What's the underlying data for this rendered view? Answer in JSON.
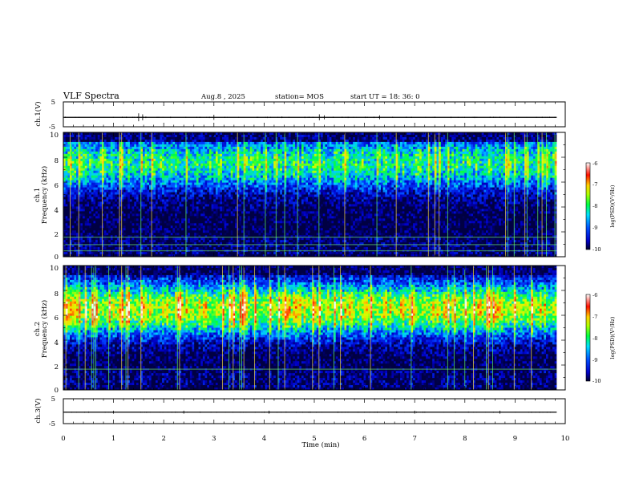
{
  "header": {
    "title": "VLF Spectra",
    "date": "Aug.8  , 2025",
    "station": "station= MOS",
    "start": "start  UT  =   18: 36: 0"
  },
  "colors": {
    "spectrogram_stops": [
      "#00002a",
      "#0000c8",
      "#0040ff",
      "#00d0ff",
      "#00ff40",
      "#d0ff00",
      "#ffd000",
      "#ff2000",
      "#ffffff"
    ],
    "axis": "#000000",
    "background": "#ffffff"
  },
  "chart_data": [
    {
      "type": "line",
      "name": "ch1 waveform",
      "ylabel": "ch.1(V)",
      "ylim": [
        -5,
        5
      ],
      "yticks": [
        "5",
        "-5"
      ],
      "xlim": [
        0,
        10
      ],
      "baseline": -1.2,
      "bursts": [
        [
          1.5,
          0.4
        ],
        [
          1.58,
          0.3
        ],
        [
          3.0,
          0.25
        ],
        [
          5.1,
          0.3
        ],
        [
          5.2,
          0.2
        ],
        [
          6.3,
          0.2
        ]
      ]
    },
    {
      "type": "heatmap",
      "name": "ch1 spectrogram",
      "xlabel": "Time  (min)",
      "ylabel": "Frequency  (kHz)",
      "channel_label": "ch.1",
      "xlim": [
        0,
        9.83
      ],
      "ylim": [
        0,
        10
      ],
      "yticks": [
        "0",
        "2",
        "4",
        "6",
        "8",
        "10"
      ],
      "band_center_khz": 7.5,
      "band_intensity": 0.62,
      "horizontal_lines_khz": [
        0.5,
        1.0,
        1.6
      ],
      "colorbar": {
        "label": "log(PSD)(V²/Hz)",
        "ticks": [
          "-6",
          "-7",
          "-8",
          "-9",
          "-10"
        ],
        "range": [
          -10,
          -6
        ]
      }
    },
    {
      "type": "heatmap",
      "name": "ch2 spectrogram",
      "xlabel": "Time  (min)",
      "ylabel": "Frequency  (kHz)",
      "channel_label": "ch.2",
      "xlim": [
        0,
        9.83
      ],
      "ylim": [
        0,
        10
      ],
      "yticks": [
        "0",
        "2",
        "4",
        "6",
        "8",
        "10"
      ],
      "band_center_khz": 6.5,
      "band_intensity": 0.85,
      "horizontal_lines_khz": [
        1.7
      ],
      "colorbar": {
        "label": "log(PSD)(V²/Hz)",
        "ticks": [
          "-6",
          "-7",
          "-8",
          "-9",
          "-10"
        ],
        "range": [
          -10,
          -6
        ]
      }
    },
    {
      "type": "line",
      "name": "ch3 waveform",
      "ylabel": "ch.3(V)",
      "ylim": [
        -5,
        5
      ],
      "yticks": [
        "5",
        "-5"
      ],
      "xlim": [
        0,
        10
      ],
      "baseline": -0.4,
      "bursts": [
        [
          1.0,
          0.15
        ],
        [
          2.4,
          0.15
        ],
        [
          4.1,
          0.15
        ],
        [
          7.0,
          0.15
        ],
        [
          8.7,
          0.15
        ]
      ]
    }
  ],
  "time_axis": {
    "label": "Time  (min)",
    "ticks": [
      "0",
      "1",
      "2",
      "3",
      "4",
      "5",
      "6",
      "7",
      "8",
      "9",
      "10"
    ]
  }
}
